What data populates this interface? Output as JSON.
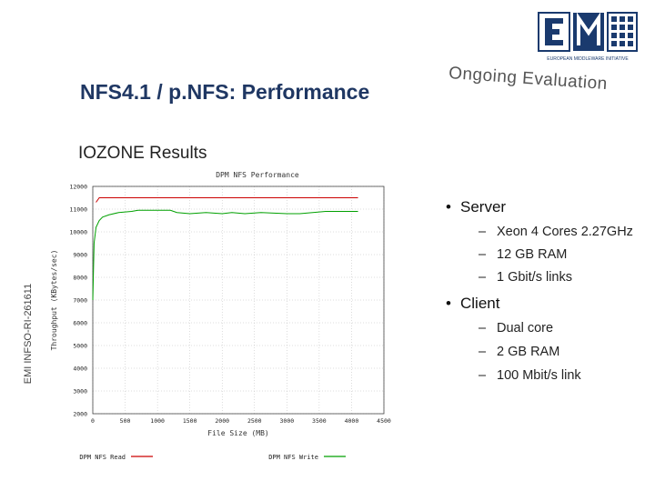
{
  "slide": {
    "title": "NFS4.1 / p.NFS: Performance",
    "subtitle": "IOZONE Results",
    "badge": "Ongoing Evaluation",
    "side_code": "EMI INFSO-RI-261611",
    "logo_caption": "EUROPEAN MIDDLEWARE INITIATIVE"
  },
  "bullets": [
    {
      "label": "Server",
      "items": [
        "Xeon 4 Cores 2.27GHz",
        "12 GB RAM",
        "1 Gbit/s links"
      ]
    },
    {
      "label": "Client",
      "items": [
        "Dual core",
        "2 GB RAM",
        "100 Mbit/s link"
      ]
    }
  ],
  "colors": {
    "title": "#1f3763",
    "read": "#cc0000",
    "write": "#00a000",
    "logo": "#1a3a6e"
  },
  "chart_data": {
    "type": "line",
    "title": "DPM NFS Performance",
    "xlabel": "File Size (MB)",
    "ylabel": "Throughput (KBytes/sec)",
    "xlim": [
      0,
      4500
    ],
    "ylim": [
      2000,
      12000
    ],
    "xticks": [
      0,
      500,
      1000,
      1500,
      2000,
      2500,
      3000,
      3500,
      4000,
      4500
    ],
    "yticks": [
      2000,
      3000,
      4000,
      5000,
      6000,
      7000,
      8000,
      9000,
      10000,
      11000,
      12000
    ],
    "grid": true,
    "legend_position": "bottom",
    "series": [
      {
        "name": "DPM NFS Read",
        "color": "#cc0000",
        "x": [
          50,
          100,
          200,
          1200,
          1500,
          2000,
          2500,
          3000,
          3500,
          4100
        ],
        "y": [
          11300,
          11500,
          11500,
          11500,
          11500,
          11500,
          11500,
          11500,
          11500,
          11500
        ]
      },
      {
        "name": "DPM NFS Write",
        "color": "#00a000",
        "x": [
          0,
          20,
          50,
          100,
          150,
          250,
          400,
          600,
          700,
          800,
          1200,
          1300,
          1500,
          1750,
          2000,
          2150,
          2350,
          2600,
          3000,
          3200,
          3400,
          3600,
          4100
        ],
        "y": [
          7000,
          9500,
          10200,
          10500,
          10650,
          10750,
          10850,
          10900,
          10950,
          10950,
          10950,
          10850,
          10800,
          10850,
          10800,
          10850,
          10800,
          10850,
          10800,
          10800,
          10850,
          10900,
          10900
        ]
      }
    ]
  }
}
